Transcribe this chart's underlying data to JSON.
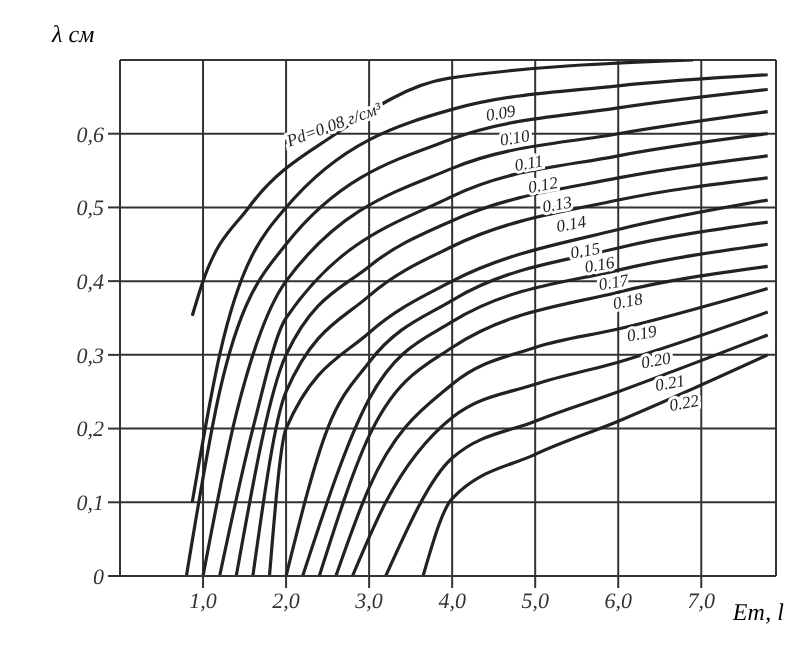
{
  "chart_data": {
    "type": "line",
    "xlabel": "Eт, l",
    "ylabel": "λ см",
    "xlim": [
      0,
      7.9
    ],
    "ylim": [
      0,
      0.7
    ],
    "xticks": [
      {
        "value": 1,
        "label": "1,0"
      },
      {
        "value": 2,
        "label": "2,0"
      },
      {
        "value": 3,
        "label": "3,0"
      },
      {
        "value": 4,
        "label": "4,0"
      },
      {
        "value": 5,
        "label": "5,0"
      },
      {
        "value": 6,
        "label": "6,0"
      },
      {
        "value": 7,
        "label": "7,0"
      }
    ],
    "yticks": [
      {
        "value": 0,
        "label": "0"
      },
      {
        "value": 0.1,
        "label": "0,1"
      },
      {
        "value": 0.2,
        "label": "0,2"
      },
      {
        "value": 0.3,
        "label": "0,3"
      },
      {
        "value": 0.4,
        "label": "0,4"
      },
      {
        "value": 0.5,
        "label": "0,5"
      },
      {
        "value": 0.6,
        "label": "0,6"
      }
    ],
    "grid": true,
    "legend": false,
    "marker": "none",
    "line_style": "solid",
    "series": [
      {
        "name": "Pd=0.08 г/см³",
        "color": "#222222",
        "x": [
          0.87,
          1.0,
          1.55,
          2.6,
          3.95,
          6.9
        ],
        "values": [
          0.353,
          0.4,
          0.5,
          0.6,
          0.675,
          0.7
        ]
      },
      {
        "name": "0.09",
        "color": "#222222",
        "x": [
          0.87,
          1.2,
          2.0,
          4.0,
          6.0,
          7.8
        ],
        "values": [
          0.1,
          0.3,
          0.5,
          0.633,
          0.665,
          0.68
        ]
      },
      {
        "name": "0.10",
        "color": "#222222",
        "x": [
          0.8,
          1.2,
          2.0,
          4.0,
          6.0,
          7.8
        ],
        "values": [
          0,
          0.25,
          0.45,
          0.593,
          0.635,
          0.66
        ]
      },
      {
        "name": "0.11",
        "color": "#222222",
        "x": [
          1.0,
          1.4,
          2.0,
          4.0,
          6.0,
          7.8
        ],
        "values": [
          0,
          0.22,
          0.4,
          0.553,
          0.6,
          0.63
        ]
      },
      {
        "name": "0.12",
        "color": "#222222",
        "x": [
          1.2,
          1.6,
          2.0,
          4.0,
          6.0,
          7.8
        ],
        "values": [
          0,
          0.2,
          0.35,
          0.515,
          0.57,
          0.6
        ]
      },
      {
        "name": "0.13",
        "color": "#222222",
        "x": [
          1.4,
          2.0,
          3.0,
          4.0,
          6.0,
          7.8
        ],
        "values": [
          0,
          0.3,
          0.42,
          0.482,
          0.54,
          0.57
        ]
      },
      {
        "name": "0.14",
        "color": "#222222",
        "x": [
          1.6,
          2.0,
          3.0,
          4.0,
          6.0,
          7.8
        ],
        "values": [
          0,
          0.25,
          0.38,
          0.447,
          0.51,
          0.54
        ]
      },
      {
        "name": "0.15",
        "color": "#222222",
        "x": [
          1.8,
          2.0,
          3.0,
          4.0,
          6.0,
          7.8
        ],
        "values": [
          0,
          0.2,
          0.33,
          0.4,
          0.47,
          0.51
        ]
      },
      {
        "name": "0.16",
        "color": "#222222",
        "x": [
          2.0,
          2.5,
          3.0,
          4.0,
          6.0,
          7.8
        ],
        "values": [
          0,
          0.2,
          0.29,
          0.374,
          0.445,
          0.48
        ]
      },
      {
        "name": "0.17",
        "color": "#222222",
        "x": [
          2.2,
          3.0,
          4.0,
          6.0,
          7.8
        ],
        "values": [
          0,
          0.24,
          0.345,
          0.415,
          0.45
        ]
      },
      {
        "name": "0.18",
        "color": "#222222",
        "x": [
          2.4,
          3.0,
          4.0,
          6.0,
          7.8
        ],
        "values": [
          0,
          0.19,
          0.31,
          0.385,
          0.42
        ]
      },
      {
        "name": "0.19",
        "color": "#222222",
        "x": [
          2.6,
          3.0,
          4.0,
          5.0,
          6.0,
          7.8
        ],
        "values": [
          0,
          0.12,
          0.26,
          0.31,
          0.335,
          0.39
        ]
      },
      {
        "name": "0.20",
        "color": "#222222",
        "x": [
          2.8,
          3.2,
          4.0,
          5.0,
          6.0,
          7.8
        ],
        "values": [
          0,
          0.1,
          0.215,
          0.26,
          0.29,
          0.358
        ]
      },
      {
        "name": "0.21",
        "color": "#222222",
        "x": [
          3.2,
          4.0,
          5.0,
          6.0,
          7.8
        ],
        "values": [
          0,
          0.16,
          0.21,
          0.25,
          0.327
        ]
      },
      {
        "name": "0.22",
        "color": "#222222",
        "x": [
          3.65,
          4.0,
          5.0,
          6.0,
          7.8
        ],
        "values": [
          0,
          0.105,
          0.165,
          0.21,
          0.3
        ]
      }
    ]
  }
}
